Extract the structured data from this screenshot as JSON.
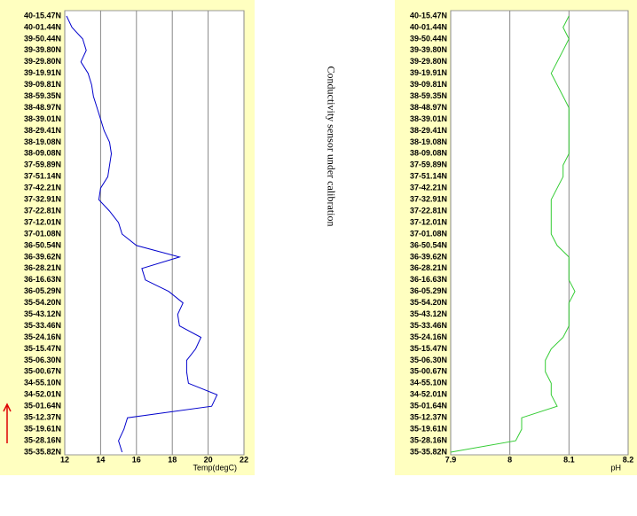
{
  "chart_data": [
    {
      "type": "line",
      "orientation": "horizontal",
      "xlabel": "Temp(degC)",
      "categories": [
        "40-15.47N",
        "40-01.44N",
        "39-50.44N",
        "39-39.80N",
        "39-29.80N",
        "39-19.91N",
        "39-09.81N",
        "38-59.35N",
        "38-48.97N",
        "38-39.01N",
        "38-29.41N",
        "38-19.08N",
        "38-09.08N",
        "37-59.89N",
        "37-51.14N",
        "37-42.21N",
        "37-32.91N",
        "37-22.81N",
        "37-12.01N",
        "37-01.08N",
        "36-50.54N",
        "36-39.62N",
        "36-28.21N",
        "36-16.63N",
        "36-05.29N",
        "35-54.20N",
        "35-43.12N",
        "35-33.46N",
        "35-24.16N",
        "35-15.47N",
        "35-06.30N",
        "35-00.67N",
        "34-55.10N",
        "34-52.01N",
        "35-01.64N",
        "35-12.37N",
        "35-19.61N",
        "35-28.16N",
        "35-35.82N"
      ],
      "values": [
        12.1,
        12.4,
        13.0,
        13.2,
        12.9,
        13.3,
        13.5,
        13.6,
        13.8,
        14.0,
        14.2,
        14.5,
        14.6,
        14.5,
        14.4,
        14.0,
        13.9,
        14.5,
        15.0,
        15.2,
        16.0,
        18.4,
        16.3,
        16.5,
        17.8,
        18.6,
        18.3,
        18.4,
        19.6,
        19.3,
        18.8,
        18.8,
        18.9,
        20.5,
        20.2,
        15.5,
        15.3,
        15.0,
        15.2
      ],
      "color": "#0000cc",
      "xlim": [
        12,
        22
      ],
      "xticks": [
        12,
        14,
        16,
        18,
        20,
        22
      ],
      "grid": true
    },
    {
      "type": "line",
      "orientation": "horizontal",
      "xlabel": "pH",
      "categories": [
        "40-15.47N",
        "40-01.44N",
        "39-50.44N",
        "39-39.80N",
        "39-29.80N",
        "39-19.91N",
        "39-09.81N",
        "38-59.35N",
        "38-48.97N",
        "38-39.01N",
        "38-29.41N",
        "38-19.08N",
        "38-09.08N",
        "37-59.89N",
        "37-51.14N",
        "37-42.21N",
        "37-32.91N",
        "37-22.81N",
        "37-12.01N",
        "37-01.08N",
        "36-50.54N",
        "36-39.62N",
        "36-28.21N",
        "36-16.63N",
        "36-05.29N",
        "35-54.20N",
        "35-43.12N",
        "35-33.46N",
        "35-24.16N",
        "35-15.47N",
        "35-06.30N",
        "35-00.67N",
        "34-55.10N",
        "34-52.01N",
        "35-01.64N",
        "35-12.37N",
        "35-19.61N",
        "35-28.16N",
        "35-35.82N"
      ],
      "values": [
        8.1,
        8.09,
        8.1,
        8.09,
        8.08,
        8.07,
        8.08,
        8.09,
        8.1,
        8.1,
        8.1,
        8.1,
        8.1,
        8.09,
        8.09,
        8.08,
        8.07,
        8.07,
        8.07,
        8.07,
        8.08,
        8.1,
        8.1,
        8.1,
        8.11,
        8.1,
        8.1,
        8.1,
        8.09,
        8.07,
        8.06,
        8.06,
        8.07,
        8.07,
        8.08,
        8.02,
        8.02,
        8.01,
        7.9
      ],
      "color": "#33cc33",
      "xlim": [
        7.9,
        8.2
      ],
      "xticks": [
        7.9,
        8,
        8.1,
        8.2
      ],
      "grid": true
    }
  ],
  "annotation": "Conductivity sensor under calibration"
}
